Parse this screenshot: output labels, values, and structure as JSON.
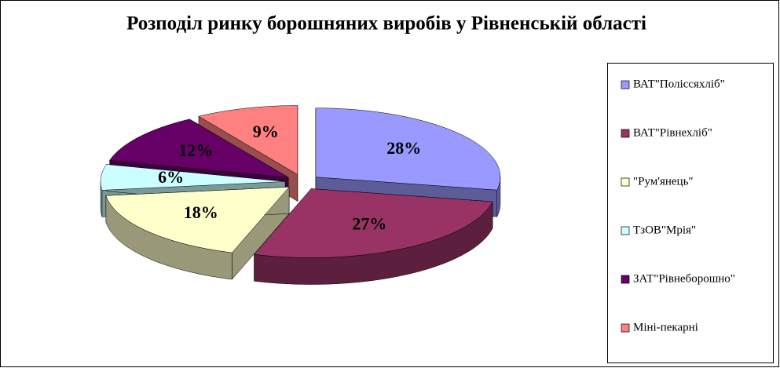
{
  "chart_data": {
    "type": "pie",
    "title": "Розподіл ринку борошняних виробів у Рівненській області",
    "categories": [
      "ВАТ\"Поліссяхліб\"",
      "ВАТ\"Рівнехліб\"",
      "\"Рум'янець\"",
      "ТзОВ\"Мрія\"",
      "ЗАТ\"Рівнеборошно\"",
      "Міні-пекарні"
    ],
    "values": [
      28,
      27,
      18,
      6,
      12,
      9
    ],
    "value_labels": [
      "28%",
      "27%",
      "18%",
      "6%",
      "12%",
      "9%"
    ],
    "colors": [
      "#9999ff",
      "#993366",
      "#ffffcc",
      "#ccffff",
      "#660066",
      "#ff8080"
    ],
    "legend": "right"
  }
}
